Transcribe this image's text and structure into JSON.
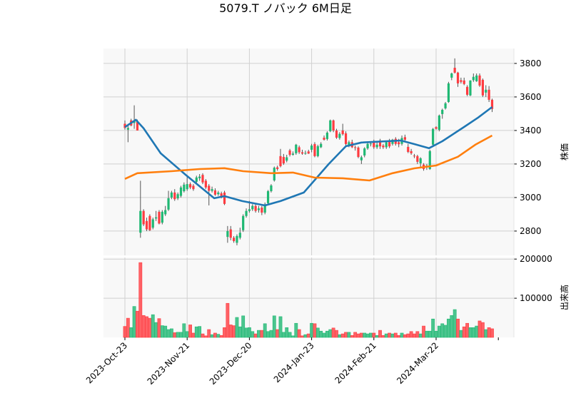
{
  "chart_data": {
    "type": "candlestick",
    "title": "5079.T ノバック 6M日足",
    "ylabel": "株価",
    "volume_label": "出来高",
    "ylim": [
      2655,
      3889
    ],
    "volume_ylim": [
      0,
      204000
    ],
    "grid": true,
    "colors": {
      "up": "#1fb873",
      "down": "#ff3b40",
      "wick": "#555555",
      "ma_short": "#1f77b4",
      "ma_long": "#ff7f0e",
      "panel_bg": "#f8f8f8",
      "grid": "#d0d0d0"
    },
    "price_ticks": [
      {
        "value": 2800,
        "label": "2800"
      },
      {
        "value": 3000,
        "label": "3000"
      },
      {
        "value": 3200,
        "label": "3200"
      },
      {
        "value": 3400,
        "label": "3400"
      },
      {
        "value": 3600,
        "label": "3600"
      },
      {
        "value": 3800,
        "label": "3800"
      }
    ],
    "volume_ticks": [
      {
        "value": 100000,
        "label": "100000"
      },
      {
        "value": 200000,
        "label": "200000"
      }
    ],
    "x_ticks": [
      {
        "index": 0,
        "label": "2023-Oct-23"
      },
      {
        "index": 20,
        "label": "2023-Nov-21"
      },
      {
        "index": 40,
        "label": "2023-Dec-20"
      },
      {
        "index": 60,
        "label": "2024-Jan-23"
      },
      {
        "index": 80,
        "label": "2024-Feb-21"
      },
      {
        "index": 100,
        "label": "2024-Mar-22"
      }
    ],
    "ohlc": [
      [
        3440,
        3460,
        3405,
        3415
      ],
      [
        3405,
        3440,
        3330,
        3415
      ],
      [
        3460,
        3470,
        3425,
        3430
      ],
      [
        3445,
        3550,
        3410,
        3455
      ],
      [
        3455,
        3465,
        3400,
        3400
      ],
      [
        2790,
        3100,
        2760,
        2920
      ],
      [
        2920,
        2930,
        2830,
        2840
      ],
      [
        2860,
        2880,
        2800,
        2810
      ],
      [
        2890,
        2900,
        2800,
        2805
      ],
      [
        2820,
        2880,
        2810,
        2870
      ],
      [
        2875,
        2920,
        2860,
        2882
      ],
      [
        2915,
        2925,
        2840,
        2845
      ],
      [
        2850,
        2925,
        2840,
        2915
      ],
      [
        2900,
        2950,
        2890,
        2925
      ],
      [
        2928,
        3040,
        2920,
        2996
      ],
      [
        3000,
        3040,
        2990,
        3030
      ],
      [
        3030,
        3050,
        2980,
        2990
      ],
      [
        2995,
        3030,
        2985,
        3020
      ],
      [
        3010,
        3070,
        3000,
        3060
      ],
      [
        3038,
        3090,
        3030,
        3077
      ],
      [
        3050,
        3130,
        3040,
        3080
      ],
      [
        3080,
        3090,
        3050,
        3060
      ],
      [
        3070,
        3080,
        3040,
        3050
      ],
      [
        3094,
        3130,
        3085,
        3120
      ],
      [
        3115,
        3140,
        3100,
        3125
      ],
      [
        3135,
        3145,
        3080,
        3090
      ],
      [
        3100,
        3110,
        3050,
        3060
      ],
      [
        3070,
        3080,
        2953,
        3040
      ],
      [
        3040,
        3065,
        3030,
        3050
      ],
      [
        3043,
        3055,
        3010,
        3017
      ],
      [
        3020,
        3040,
        3010,
        3030
      ],
      [
        3025,
        3035,
        2995,
        3004
      ],
      [
        3030,
        3040,
        2955,
        2962
      ],
      [
        2765,
        2830,
        2730,
        2800
      ],
      [
        2810,
        2830,
        2745,
        2760
      ],
      [
        2760,
        2770,
        2730,
        2740
      ],
      [
        2730,
        2780,
        2715,
        2770
      ],
      [
        2760,
        2820,
        2750,
        2790
      ],
      [
        2805,
        2900,
        2795,
        2890
      ],
      [
        2890,
        2935,
        2880,
        2920
      ],
      [
        2920,
        2980,
        2910,
        2930
      ],
      [
        2930,
        2960,
        2920,
        2950
      ],
      [
        2950,
        2960,
        2910,
        2920
      ],
      [
        2925,
        2950,
        2910,
        2935
      ],
      [
        2940,
        2950,
        2895,
        2910
      ],
      [
        2910,
        2970,
        2900,
        2960
      ],
      [
        2966,
        3045,
        2960,
        3038
      ],
      [
        3038,
        3080,
        3030,
        3072
      ],
      [
        3102,
        3185,
        3095,
        3178
      ],
      [
        3180,
        3190,
        3160,
        3170
      ],
      [
        3247,
        3290,
        3180,
        3187
      ],
      [
        3242,
        3260,
        3195,
        3204
      ],
      [
        3220,
        3255,
        3210,
        3240
      ],
      [
        3281,
        3290,
        3245,
        3255
      ],
      [
        3255,
        3275,
        3250,
        3262
      ],
      [
        3264,
        3320,
        3255,
        3315
      ],
      [
        3300,
        3310,
        3260,
        3270
      ],
      [
        3270,
        3285,
        3255,
        3262
      ],
      [
        3265,
        3280,
        3255,
        3266
      ],
      [
        3275,
        3285,
        3260,
        3262
      ],
      [
        3285,
        3320,
        3270,
        3310
      ],
      [
        3319,
        3330,
        3240,
        3247
      ],
      [
        3247,
        3315,
        3240,
        3306
      ],
      [
        3300,
        3330,
        3295,
        3320
      ],
      [
        3357,
        3370,
        3340,
        3345
      ],
      [
        3349,
        3395,
        3340,
        3387
      ],
      [
        3396,
        3465,
        3390,
        3460
      ],
      [
        3460,
        3465,
        3390,
        3400
      ],
      [
        3400,
        3410,
        3350,
        3357
      ],
      [
        3355,
        3390,
        3345,
        3380
      ],
      [
        3400,
        3440,
        3370,
        3378
      ],
      [
        3383,
        3395,
        3310,
        3319
      ],
      [
        3310,
        3340,
        3300,
        3330
      ],
      [
        3330,
        3345,
        3295,
        3300
      ],
      [
        3300,
        3310,
        3280,
        3298
      ],
      [
        3298,
        3305,
        3235,
        3242
      ],
      [
        3222,
        3250,
        3200,
        3240
      ],
      [
        3251,
        3300,
        3240,
        3293
      ],
      [
        3293,
        3330,
        3285,
        3320
      ],
      [
        3320,
        3335,
        3305,
        3322
      ],
      [
        3330,
        3345,
        3290,
        3300
      ],
      [
        3300,
        3330,
        3290,
        3315
      ],
      [
        3340,
        3350,
        3290,
        3305
      ],
      [
        3310,
        3320,
        3290,
        3300
      ],
      [
        3300,
        3340,
        3290,
        3330
      ],
      [
        3340,
        3350,
        3295,
        3305
      ],
      [
        3320,
        3350,
        3310,
        3345
      ],
      [
        3350,
        3360,
        3310,
        3320
      ],
      [
        3330,
        3350,
        3300,
        3318
      ],
      [
        3320,
        3370,
        3310,
        3355
      ],
      [
        3360,
        3375,
        3330,
        3345
      ],
      [
        3302,
        3320,
        3265,
        3272
      ],
      [
        3277,
        3290,
        3255,
        3264
      ],
      [
        3250,
        3260,
        3235,
        3247
      ],
      [
        3247,
        3255,
        3200,
        3213
      ],
      [
        3204,
        3240,
        3180,
        3234
      ],
      [
        3196,
        3205,
        3160,
        3170
      ],
      [
        3180,
        3200,
        3165,
        3190
      ],
      [
        3170,
        3285,
        3165,
        3277
      ],
      [
        3315,
        3415,
        3305,
        3409
      ],
      [
        3420,
        3425,
        3405,
        3410
      ],
      [
        3404,
        3495,
        3395,
        3489
      ],
      [
        3498,
        3530,
        3470,
        3523
      ],
      [
        3532,
        3570,
        3525,
        3562
      ],
      [
        3570,
        3690,
        3565,
        3681
      ],
      [
        3715,
        3745,
        3700,
        3740
      ],
      [
        3774,
        3830,
        3740,
        3745
      ],
      [
        3745,
        3750,
        3660,
        3681
      ],
      [
        3700,
        3715,
        3680,
        3690
      ],
      [
        3698,
        3715,
        3670,
        3677
      ],
      [
        3660,
        3670,
        3605,
        3613
      ],
      [
        3609,
        3700,
        3605,
        3698
      ],
      [
        3700,
        3740,
        3690,
        3720
      ],
      [
        3694,
        3740,
        3690,
        3728
      ],
      [
        3728,
        3740,
        3660,
        3668
      ],
      [
        3702,
        3710,
        3600,
        3609
      ],
      [
        3626,
        3670,
        3600,
        3643
      ],
      [
        3643,
        3665,
        3570,
        3583
      ],
      [
        3583,
        3590,
        3510,
        3528
      ]
    ],
    "volume": [
      28000,
      49000,
      25000,
      79000,
      67000,
      191000,
      56000,
      53000,
      49000,
      58000,
      38000,
      48000,
      30000,
      29000,
      20000,
      22000,
      12000,
      13000,
      13000,
      35000,
      15000,
      32000,
      11000,
      27000,
      28000,
      9000,
      4000,
      20000,
      7000,
      11000,
      8000,
      5000,
      25000,
      87000,
      32000,
      30000,
      51000,
      27000,
      55000,
      24000,
      25000,
      15000,
      9000,
      18000,
      18000,
      35000,
      15000,
      18000,
      55000,
      20000,
      53000,
      13000,
      25000,
      13000,
      4000,
      36000,
      20000,
      4000,
      7000,
      9000,
      36000,
      35000,
      24000,
      16000,
      11000,
      16000,
      20000,
      24000,
      18000,
      7000,
      9000,
      13000,
      13000,
      5000,
      13000,
      9000,
      11000,
      11000,
      9000,
      11000,
      11000,
      5000,
      18000,
      5000,
      9000,
      11000,
      9000,
      11000,
      5000,
      11000,
      7000,
      9000,
      15000,
      9000,
      15000,
      9000,
      29000,
      16000,
      16000,
      47000,
      16000,
      29000,
      35000,
      31000,
      47000,
      56000,
      71000,
      47000,
      18000,
      27000,
      36000,
      25000,
      25000,
      29000,
      42000,
      38000,
      20000,
      25000,
      22000
    ],
    "ma_short": [
      [
        0,
        3420
      ],
      [
        3.5,
        3464
      ],
      [
        6,
        3413
      ],
      [
        11.5,
        3264
      ],
      [
        19.5,
        3136
      ],
      [
        28.7,
        2996
      ],
      [
        32,
        3008
      ],
      [
        37.7,
        2979
      ],
      [
        45,
        2953
      ],
      [
        50,
        2979
      ],
      [
        57.5,
        3030
      ],
      [
        65.5,
        3200
      ],
      [
        71,
        3306
      ],
      [
        76,
        3328
      ],
      [
        88.7,
        3340
      ],
      [
        93,
        3319
      ],
      [
        97.7,
        3294
      ],
      [
        102,
        3336
      ],
      [
        109,
        3421
      ],
      [
        113.5,
        3477
      ],
      [
        118,
        3540
      ]
    ],
    "ma_long": [
      [
        0,
        3111
      ],
      [
        4,
        3145
      ],
      [
        15,
        3157
      ],
      [
        24,
        3170
      ],
      [
        32,
        3175
      ],
      [
        38,
        3157
      ],
      [
        47,
        3145
      ],
      [
        54,
        3149
      ],
      [
        61,
        3119
      ],
      [
        70,
        3115
      ],
      [
        78.6,
        3102
      ],
      [
        86,
        3145
      ],
      [
        93,
        3174
      ],
      [
        100,
        3191
      ],
      [
        107,
        3243
      ],
      [
        112.6,
        3315
      ],
      [
        118,
        3370
      ]
    ]
  }
}
